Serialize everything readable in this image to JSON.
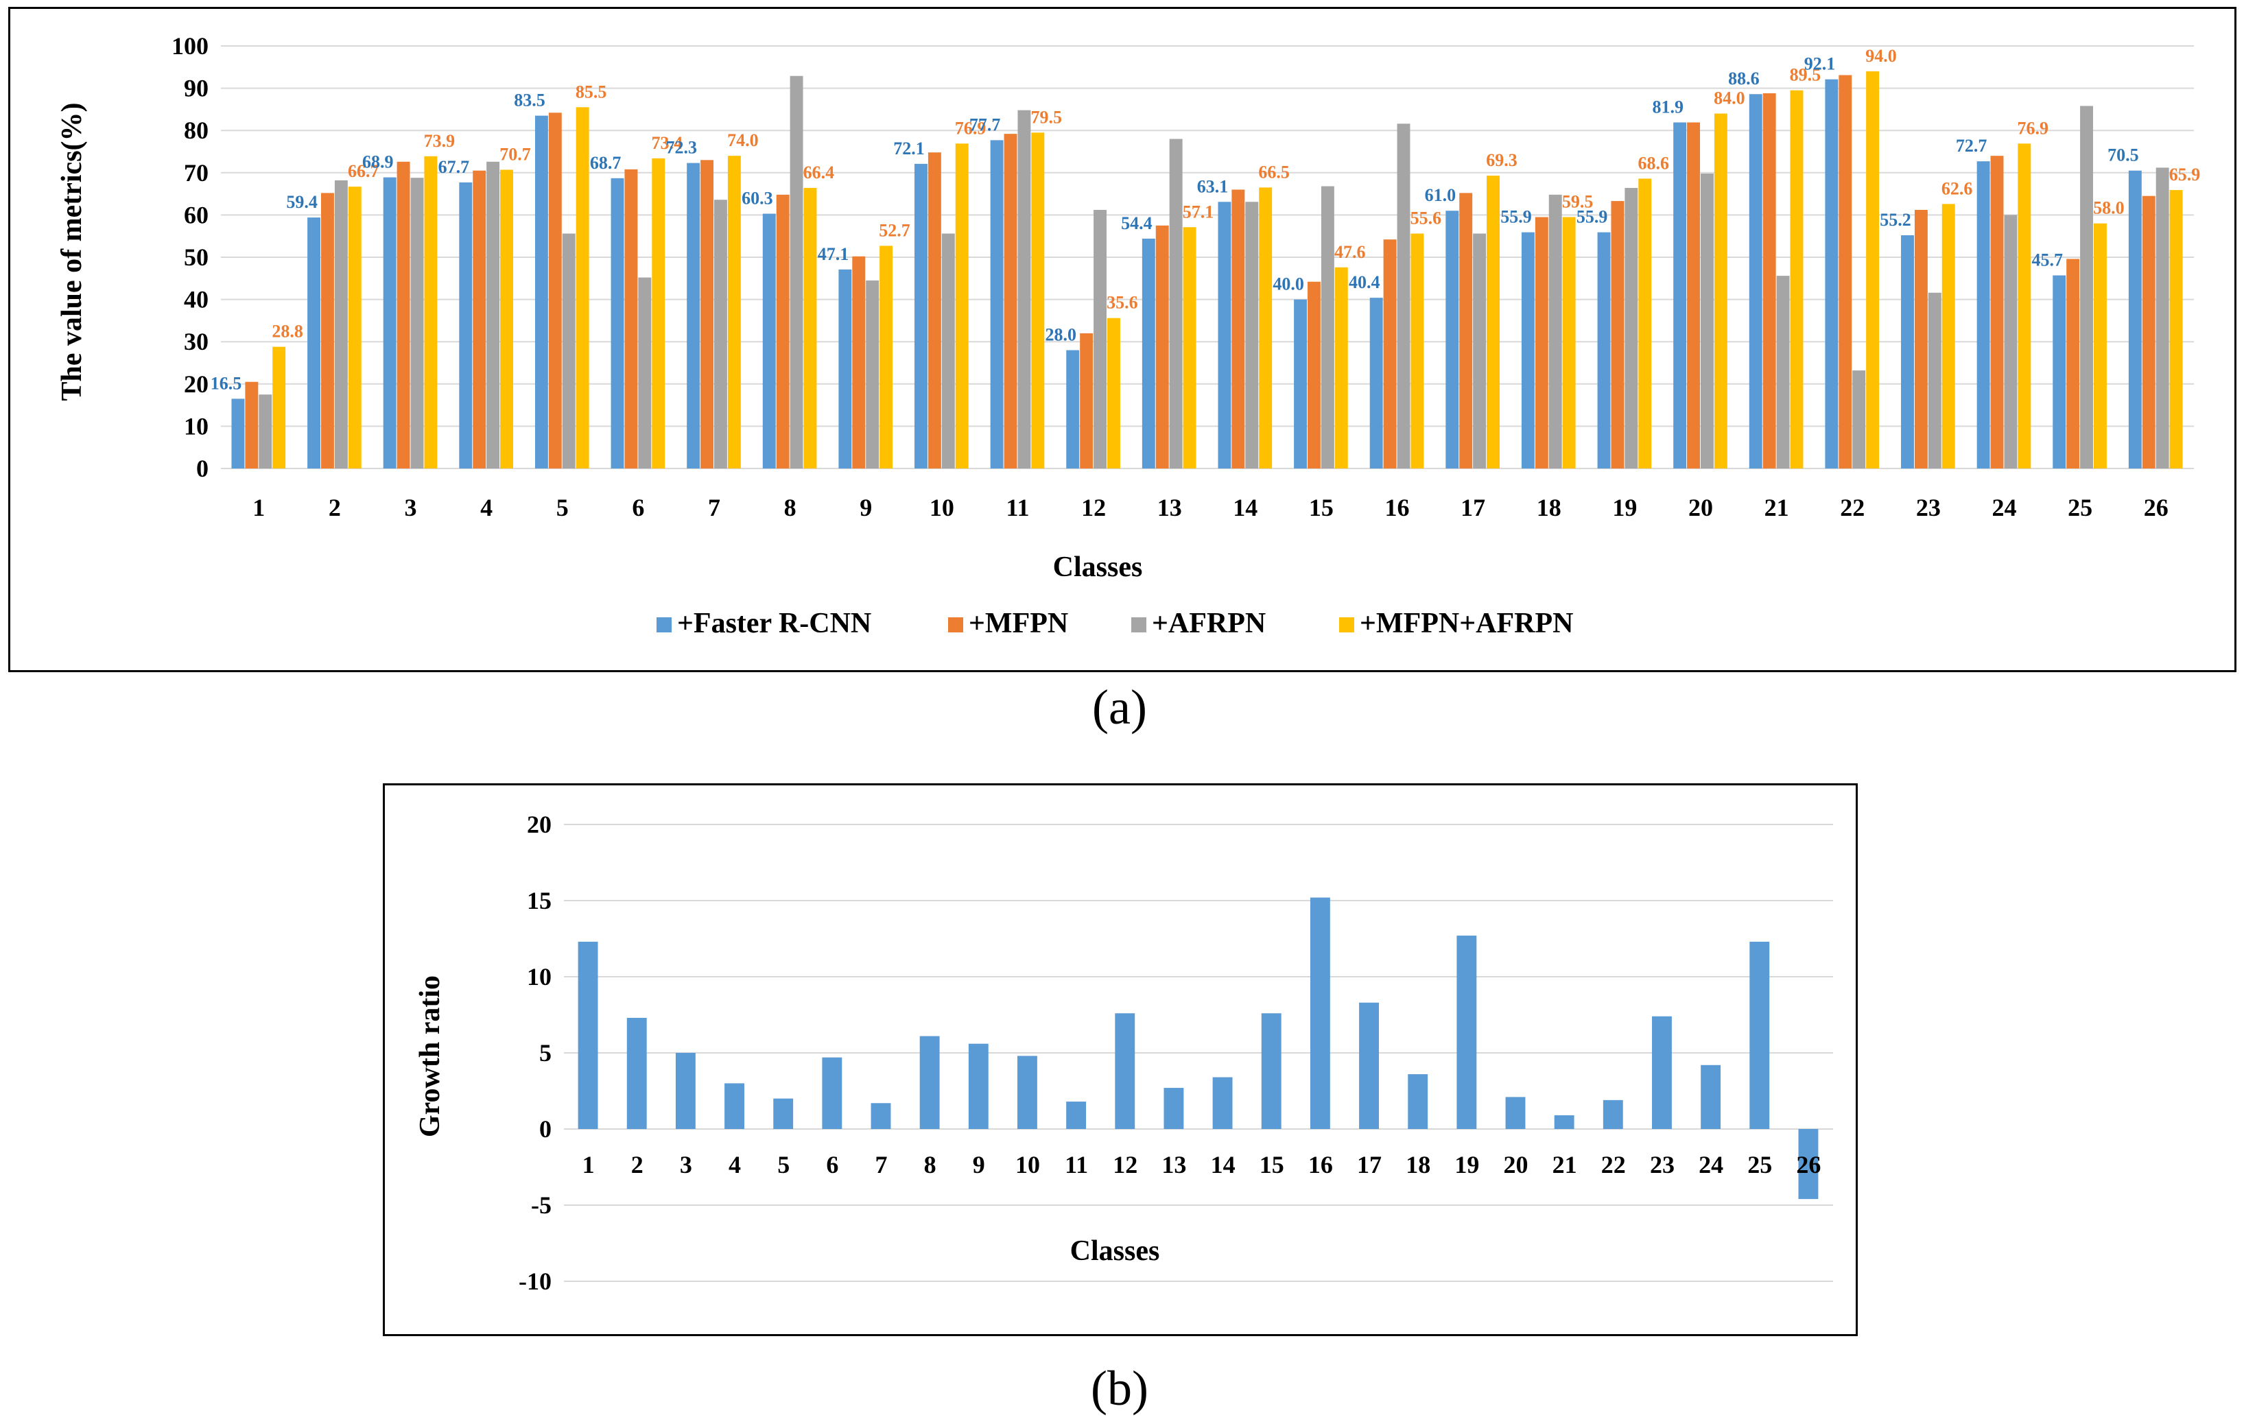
{
  "captions": {
    "a": "(a)",
    "b": "(b)"
  },
  "chart_data": [
    {
      "type": "bar",
      "id": "a",
      "xlabel": "Classes",
      "ylabel": "The value of metrics(%)",
      "ylim": [
        0,
        100
      ],
      "yticks": [
        0,
        10,
        20,
        30,
        40,
        50,
        60,
        70,
        80,
        90,
        100
      ],
      "grid": true,
      "legend_position": "bottom",
      "categories": [
        "1",
        "2",
        "3",
        "4",
        "5",
        "6",
        "7",
        "8",
        "9",
        "10",
        "11",
        "12",
        "13",
        "14",
        "15",
        "16",
        "17",
        "18",
        "19",
        "20",
        "21",
        "22",
        "23",
        "24",
        "25",
        "26"
      ],
      "series": [
        {
          "name": "+Faster R-CNN",
          "color": "#5B9BD5",
          "values": [
            16.5,
            59.4,
            68.9,
            67.7,
            83.5,
            68.7,
            72.3,
            60.3,
            47.1,
            72.1,
            77.7,
            28.0,
            54.4,
            63.1,
            40.0,
            40.4,
            61.0,
            55.9,
            55.9,
            81.9,
            88.6,
            92.1,
            55.2,
            72.7,
            45.7,
            70.5
          ]
        },
        {
          "name": "+MFPN",
          "color": "#ED7D31",
          "values": [
            20.5,
            65.2,
            72.6,
            70.5,
            84.2,
            70.8,
            73.0,
            64.8,
            50.2,
            74.8,
            79.2,
            32.0,
            57.5,
            66.0,
            44.2,
            54.2,
            65.2,
            59.5,
            63.3,
            81.9,
            88.8,
            93.1,
            61.2,
            74.0,
            49.6,
            64.5
          ]
        },
        {
          "name": "+AFRPN",
          "color": "#A5A5A5",
          "values": [
            17.5,
            68.2,
            68.8,
            72.6,
            55.6,
            45.2,
            63.6,
            92.9,
            44.5,
            55.6,
            84.8,
            61.2,
            78.0,
            63.1,
            66.8,
            81.6,
            55.6,
            64.8,
            66.4,
            69.8,
            45.6,
            23.2,
            41.6,
            60.0,
            85.8,
            71.2
          ]
        },
        {
          "name": "+MFPN+AFRPN",
          "color": "#FFC000",
          "values": [
            28.8,
            66.7,
            73.9,
            70.7,
            85.5,
            73.4,
            74.0,
            66.4,
            52.7,
            76.9,
            79.5,
            35.6,
            57.1,
            66.5,
            47.6,
            55.6,
            69.3,
            59.5,
            68.6,
            84.0,
            89.5,
            94.0,
            62.6,
            76.9,
            58.0,
            65.9
          ]
        }
      ],
      "data_labels": [
        {
          "category": "1",
          "series": 0,
          "text": "16.5"
        },
        {
          "category": "1",
          "series": 3,
          "text": "28.8"
        },
        {
          "category": "2",
          "series": 0,
          "text": "59.4"
        },
        {
          "category": "2",
          "series": 3,
          "text": "66.7"
        },
        {
          "category": "3",
          "series": 0,
          "text": "68.9"
        },
        {
          "category": "3",
          "series": 3,
          "text": "73.9"
        },
        {
          "category": "4",
          "series": 0,
          "text": "67.7"
        },
        {
          "category": "4",
          "series": 3,
          "text": "70.7"
        },
        {
          "category": "5",
          "series": 0,
          "text": "83.5"
        },
        {
          "category": "5",
          "series": 3,
          "text": "85.5"
        },
        {
          "category": "6",
          "series": 0,
          "text": "68.7"
        },
        {
          "category": "6",
          "series": 3,
          "text": "73.4"
        },
        {
          "category": "7",
          "series": 0,
          "text": "72.3"
        },
        {
          "category": "7",
          "series": 3,
          "text": "74.0"
        },
        {
          "category": "8",
          "series": 0,
          "text": "60.3"
        },
        {
          "category": "8",
          "series": 3,
          "text": "66.4"
        },
        {
          "category": "9",
          "series": 0,
          "text": "47.1"
        },
        {
          "category": "9",
          "series": 3,
          "text": "52.7"
        },
        {
          "category": "10",
          "series": 0,
          "text": "72.1"
        },
        {
          "category": "10",
          "series": 3,
          "text": "76.9"
        },
        {
          "category": "11",
          "series": 0,
          "text": "77.7"
        },
        {
          "category": "11",
          "series": 3,
          "text": "79.5"
        },
        {
          "category": "12",
          "series": 0,
          "text": "28.0"
        },
        {
          "category": "12",
          "series": 3,
          "text": "35.6"
        },
        {
          "category": "13",
          "series": 0,
          "text": "54.4"
        },
        {
          "category": "13",
          "series": 3,
          "text": "57.1"
        },
        {
          "category": "14",
          "series": 0,
          "text": "63.1"
        },
        {
          "category": "14",
          "series": 3,
          "text": "66.5"
        },
        {
          "category": "15",
          "series": 0,
          "text": "40.0"
        },
        {
          "category": "15",
          "series": 3,
          "text": "47.6"
        },
        {
          "category": "16",
          "series": 0,
          "text": "40.4"
        },
        {
          "category": "16",
          "series": 3,
          "text": "55.6"
        },
        {
          "category": "17",
          "series": 0,
          "text": "61.0"
        },
        {
          "category": "17",
          "series": 3,
          "text": "69.3"
        },
        {
          "category": "18",
          "series": 0,
          "text": "55.9"
        },
        {
          "category": "18",
          "series": 3,
          "text": "59.5"
        },
        {
          "category": "19",
          "series": 0,
          "text": "55.9"
        },
        {
          "category": "19",
          "series": 3,
          "text": "68.6"
        },
        {
          "category": "20",
          "series": 0,
          "text": "81.9"
        },
        {
          "category": "20",
          "series": 3,
          "text": "84.0"
        },
        {
          "category": "21",
          "series": 0,
          "text": "88.6"
        },
        {
          "category": "21",
          "series": 3,
          "text": "89.5"
        },
        {
          "category": "22",
          "series": 0,
          "text": "92.1"
        },
        {
          "category": "22",
          "series": 3,
          "text": "94.0"
        },
        {
          "category": "23",
          "series": 0,
          "text": "55.2"
        },
        {
          "category": "23",
          "series": 3,
          "text": "62.6"
        },
        {
          "category": "24",
          "series": 0,
          "text": "72.7"
        },
        {
          "category": "24",
          "series": 3,
          "text": "76.9"
        },
        {
          "category": "25",
          "series": 0,
          "text": "45.7"
        },
        {
          "category": "25",
          "series": 3,
          "text": "58.0"
        },
        {
          "category": "26",
          "series": 0,
          "text": "70.5"
        },
        {
          "category": "26",
          "series": 3,
          "text": "65.9"
        }
      ]
    },
    {
      "type": "bar",
      "id": "b",
      "xlabel": "Classes",
      "ylabel": "Growth ratio",
      "ylim": [
        -10,
        20
      ],
      "yticks": [
        -10,
        -5,
        0,
        5,
        10,
        15,
        20
      ],
      "grid": true,
      "categories": [
        "1",
        "2",
        "3",
        "4",
        "5",
        "6",
        "7",
        "8",
        "9",
        "10",
        "11",
        "12",
        "13",
        "14",
        "15",
        "16",
        "17",
        "18",
        "19",
        "20",
        "21",
        "22",
        "23",
        "24",
        "25",
        "26"
      ],
      "series": [
        {
          "name": "Growth ratio",
          "color": "#5B9BD5",
          "values": [
            12.3,
            7.3,
            5.0,
            3.0,
            2.0,
            4.7,
            1.7,
            6.1,
            5.6,
            4.8,
            1.8,
            7.6,
            2.7,
            3.4,
            7.6,
            15.2,
            8.3,
            3.6,
            12.7,
            2.1,
            0.9,
            1.9,
            7.4,
            4.2,
            12.3,
            -4.6
          ]
        }
      ]
    }
  ]
}
